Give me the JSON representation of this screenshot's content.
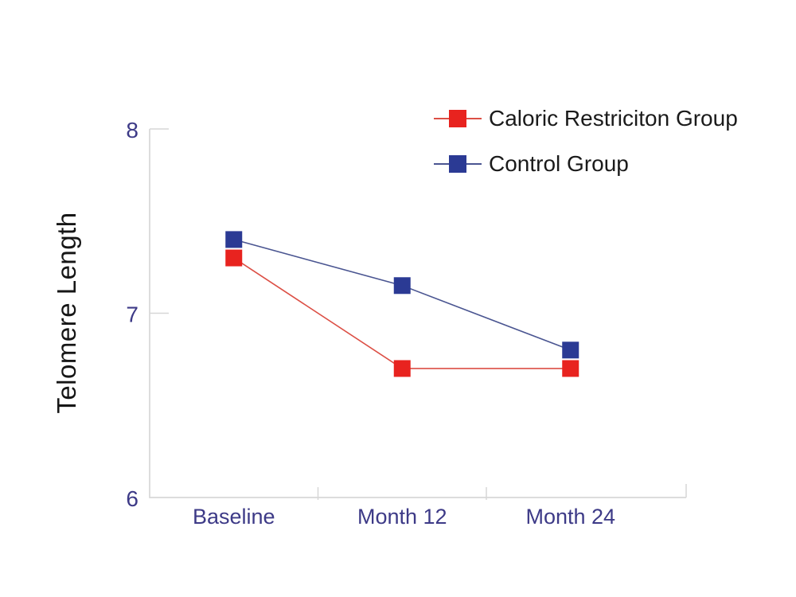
{
  "chart_data": {
    "type": "line",
    "title": "",
    "ylabel": "Telomere Length",
    "xlabel": "",
    "categories": [
      "Baseline",
      "Month 12",
      "Month 24"
    ],
    "series": [
      {
        "name": "Caloric Restriciton Group",
        "values": [
          7.3,
          6.7,
          6.7
        ],
        "color": "#e8231f",
        "line_color": "#dc4f45",
        "marker": "square"
      },
      {
        "name": "Control Group",
        "values": [
          7.4,
          7.15,
          6.8
        ],
        "color": "#2b3a94",
        "line_color": "#4a5591",
        "marker": "square"
      }
    ],
    "ylim": [
      6,
      8
    ],
    "yticks": [
      8,
      7,
      6
    ],
    "grid": false,
    "legend_position": "top-right",
    "axis_color": "#d7d7d7",
    "tick_label_color": "#3d3a87",
    "text_color": "#1a1a1a"
  }
}
